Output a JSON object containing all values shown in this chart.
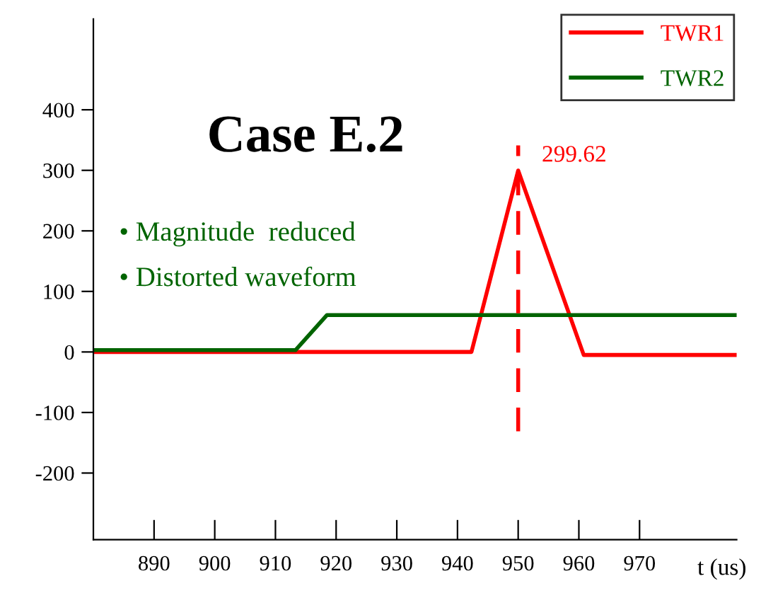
{
  "chart_data": {
    "type": "line",
    "title": "Case E.2",
    "xlabel": "t (us)",
    "xlim": [
      880,
      986
    ],
    "ylim": [
      -310,
      550
    ],
    "xticks": [
      890,
      900,
      910,
      920,
      930,
      940,
      950,
      960,
      970
    ],
    "yticks": [
      -200,
      -100,
      0,
      100,
      200,
      300,
      400
    ],
    "series": [
      {
        "name": "TWR1",
        "color": "#ff0000",
        "x": [
          880,
          942.3,
          950,
          960.8,
          986
        ],
        "values": [
          0,
          0,
          299.62,
          -5,
          -5
        ]
      },
      {
        "name": "TWR2",
        "color": "#006400",
        "x": [
          880,
          913.3,
          918.5,
          986
        ],
        "values": [
          3,
          3,
          61,
          61
        ]
      },
      {
        "color": "#ff0000",
        "line_style": "dashed",
        "x": [
          950,
          950
        ],
        "values": [
          -131,
          341
        ]
      }
    ],
    "annotations": [
      {
        "text": "299.62",
        "x": 950,
        "y": 299.62
      },
      "• Magnitude  reduced",
      "• Distorted waveform"
    ],
    "legend": "top right",
    "grid": false,
    "marker": "none",
    "line_style": "solid"
  }
}
